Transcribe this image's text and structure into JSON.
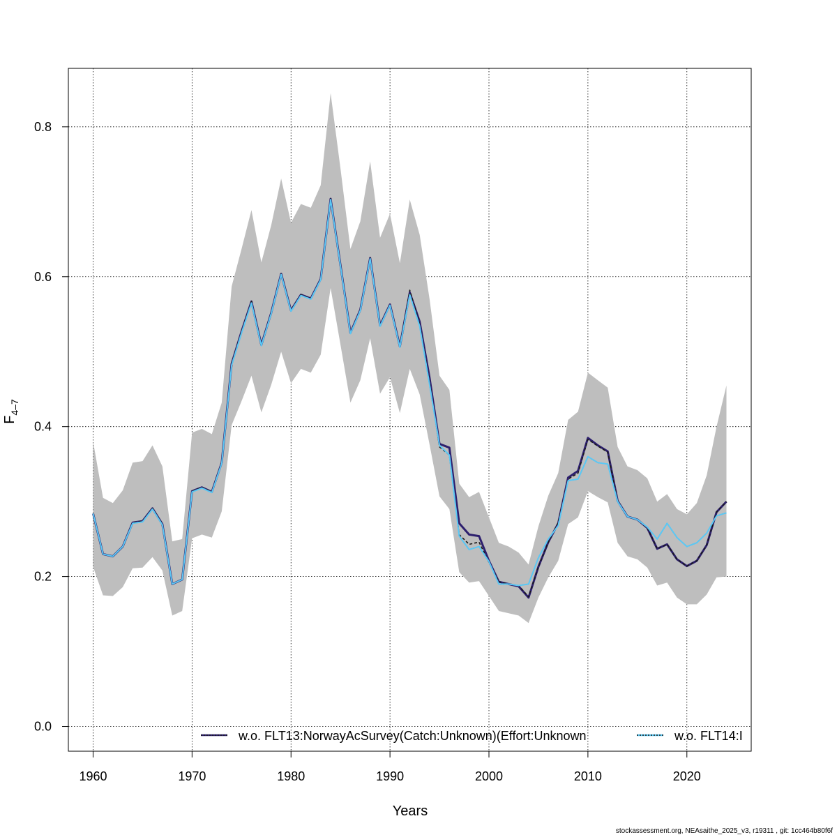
{
  "chart_data": {
    "type": "line",
    "title": "",
    "xlabel": "Years",
    "ylabel_main": "F",
    "ylabel_sub": "4–7",
    "xlim": [
      1957.5,
      2026.5
    ],
    "ylim": [
      -0.033,
      0.878
    ],
    "xticks": [
      1960,
      1970,
      1980,
      1990,
      2000,
      2010,
      2020
    ],
    "yticks": [
      0.0,
      0.2,
      0.4,
      0.6,
      0.8
    ],
    "ytick_labels": [
      "0.0",
      "0.2",
      "0.4",
      "0.6",
      "0.8"
    ],
    "grid": true,
    "legend_placement": "bottom",
    "x": [
      1960,
      1961,
      1962,
      1963,
      1964,
      1965,
      1966,
      1967,
      1968,
      1969,
      1970,
      1971,
      1972,
      1973,
      1974,
      1975,
      1976,
      1977,
      1978,
      1979,
      1980,
      1981,
      1982,
      1983,
      1984,
      1985,
      1986,
      1987,
      1988,
      1989,
      1990,
      1991,
      1992,
      1993,
      1994,
      1995,
      1996,
      1997,
      1998,
      1999,
      2000,
      2001,
      2002,
      2003,
      2004,
      2005,
      2006,
      2007,
      2008,
      2009,
      2010,
      2011,
      2012,
      2013,
      2014,
      2015,
      2016,
      2017,
      2018,
      2019,
      2020,
      2021,
      2022,
      2023,
      2024
    ],
    "band_upper": [
      0.38,
      0.305,
      0.298,
      0.315,
      0.352,
      0.354,
      0.375,
      0.347,
      0.247,
      0.25,
      0.392,
      0.397,
      0.39,
      0.432,
      0.587,
      0.637,
      0.689,
      0.619,
      0.669,
      0.731,
      0.672,
      0.697,
      0.692,
      0.722,
      0.845,
      0.744,
      0.637,
      0.674,
      0.754,
      0.652,
      0.684,
      0.618,
      0.703,
      0.656,
      0.57,
      0.468,
      0.449,
      0.324,
      0.306,
      0.313,
      0.279,
      0.245,
      0.24,
      0.232,
      0.216,
      0.267,
      0.308,
      0.338,
      0.409,
      0.42,
      0.472,
      0.462,
      0.452,
      0.373,
      0.347,
      0.342,
      0.331,
      0.3,
      0.31,
      0.29,
      0.283,
      0.298,
      0.335,
      0.4,
      0.455
    ],
    "band_lower": [
      0.213,
      0.175,
      0.174,
      0.186,
      0.211,
      0.212,
      0.226,
      0.208,
      0.148,
      0.154,
      0.251,
      0.256,
      0.252,
      0.287,
      0.402,
      0.434,
      0.468,
      0.419,
      0.456,
      0.5,
      0.458,
      0.477,
      0.472,
      0.496,
      0.585,
      0.509,
      0.432,
      0.462,
      0.518,
      0.444,
      0.466,
      0.418,
      0.477,
      0.443,
      0.376,
      0.307,
      0.29,
      0.206,
      0.192,
      0.194,
      0.174,
      0.154,
      0.151,
      0.148,
      0.138,
      0.172,
      0.199,
      0.221,
      0.27,
      0.279,
      0.314,
      0.306,
      0.299,
      0.245,
      0.227,
      0.223,
      0.212,
      0.188,
      0.192,
      0.172,
      0.163,
      0.163,
      0.176,
      0.199,
      0.2
    ],
    "series": [
      {
        "name": "w.o. FLT13:NorwayAcSurvey(Catch:Unknown)(Effort:Unknown",
        "color": "#2d1f6e",
        "dash": "solid",
        "values": [
          0.284,
          0.23,
          0.227,
          0.24,
          0.272,
          0.274,
          0.291,
          0.27,
          0.19,
          0.196,
          0.314,
          0.319,
          0.313,
          0.352,
          0.484,
          0.527,
          0.567,
          0.509,
          0.552,
          0.604,
          0.555,
          0.576,
          0.571,
          0.597,
          0.704,
          0.615,
          0.525,
          0.556,
          0.625,
          0.535,
          0.563,
          0.507,
          0.579,
          0.54,
          0.465,
          0.377,
          0.372,
          0.271,
          0.256,
          0.254,
          0.221,
          0.193,
          0.19,
          0.187,
          0.172,
          0.213,
          0.246,
          0.271,
          0.332,
          0.341,
          0.385,
          0.375,
          0.367,
          0.301,
          0.28,
          0.276,
          0.265,
          0.237,
          0.243,
          0.223,
          0.214,
          0.221,
          0.242,
          0.286,
          0.3
        ]
      },
      {
        "name": "",
        "color": "#1a1a1a",
        "dash": "dashed",
        "values": [
          0.284,
          0.23,
          0.227,
          0.24,
          0.272,
          0.274,
          0.291,
          0.27,
          0.19,
          0.196,
          0.314,
          0.319,
          0.313,
          0.352,
          0.484,
          0.527,
          0.567,
          0.509,
          0.552,
          0.604,
          0.555,
          0.576,
          0.571,
          0.597,
          0.704,
          0.615,
          0.525,
          0.556,
          0.625,
          0.535,
          0.563,
          0.507,
          0.582,
          0.537,
          0.46,
          0.373,
          0.362,
          0.256,
          0.243,
          0.246,
          0.219,
          0.193,
          0.19,
          0.188,
          0.173,
          0.213,
          0.246,
          0.272,
          0.33,
          0.338,
          0.383,
          0.374,
          0.366,
          0.301,
          0.28,
          0.276,
          0.265,
          0.237,
          0.243,
          0.223,
          0.214,
          0.221,
          0.242,
          0.286,
          0.3
        ]
      },
      {
        "name": "w.o. FLT14:I",
        "color": "#1a1a1a",
        "dash": "dotted",
        "values": [
          0.284,
          0.23,
          0.227,
          0.24,
          0.271,
          0.273,
          0.29,
          0.269,
          0.19,
          0.196,
          0.313,
          0.318,
          0.312,
          0.351,
          0.482,
          0.525,
          0.565,
          0.508,
          0.551,
          0.603,
          0.554,
          0.575,
          0.57,
          0.596,
          0.703,
          0.614,
          0.524,
          0.555,
          0.624,
          0.534,
          0.562,
          0.506,
          0.576,
          0.534,
          0.456,
          0.375,
          0.362,
          0.254,
          0.236,
          0.24,
          0.22,
          0.19,
          0.19,
          0.188,
          0.19,
          0.225,
          0.25,
          0.268,
          0.328,
          0.33,
          0.36,
          0.352,
          0.35,
          0.3,
          0.28,
          0.276,
          0.266,
          0.25,
          0.271,
          0.252,
          0.24,
          0.245,
          0.258,
          0.281,
          0.285
        ]
      },
      {
        "name": "",
        "color": "#5bc8f5",
        "dash": "solid",
        "values": [
          0.284,
          0.23,
          0.227,
          0.24,
          0.271,
          0.273,
          0.29,
          0.269,
          0.19,
          0.196,
          0.313,
          0.318,
          0.312,
          0.351,
          0.482,
          0.525,
          0.565,
          0.508,
          0.551,
          0.603,
          0.554,
          0.575,
          0.57,
          0.596,
          0.703,
          0.614,
          0.524,
          0.555,
          0.624,
          0.534,
          0.562,
          0.506,
          0.576,
          0.534,
          0.456,
          0.375,
          0.362,
          0.254,
          0.236,
          0.24,
          0.22,
          0.19,
          0.19,
          0.188,
          0.19,
          0.225,
          0.25,
          0.268,
          0.328,
          0.33,
          0.36,
          0.352,
          0.35,
          0.3,
          0.28,
          0.276,
          0.266,
          0.25,
          0.271,
          0.252,
          0.24,
          0.245,
          0.258,
          0.281,
          0.285
        ]
      }
    ],
    "legend": [
      {
        "label": "w.o. FLT13:NorwayAcSurvey(Catch:Unknown)(Effort:Unknown",
        "line_color": "#2d1f6e",
        "dash_color": "#1a1a1a"
      },
      {
        "label": "w.o. FLT14:I",
        "line_color": "#5bc8f5",
        "dash_color": "#1a1a1a"
      }
    ],
    "band_color": "#bebebe"
  },
  "footer": "stockassessment.org, NEAsaithe_2025_v3, r19311 , git: 1cc464b80f6f"
}
